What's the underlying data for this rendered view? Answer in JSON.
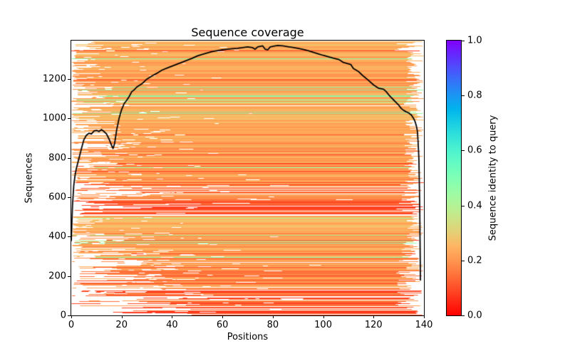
{
  "title": "Sequence coverage",
  "xlabel": "Positions",
  "ylabel": "Sequences",
  "colorbar": {
    "label": "Sequence identity to query",
    "tick_labels": [
      "0.0",
      "0.2",
      "0.4",
      "0.6",
      "0.8",
      "1.0"
    ],
    "tick_values": [
      0.0,
      0.2,
      0.4,
      0.6,
      0.8,
      1.0
    ],
    "min": 0.0,
    "max": 1.0,
    "colormap": "rainbow_r",
    "color_stops": {
      "0.0": "#ff0000",
      "0.2": "#ff964f",
      "0.4": "#b2f396",
      "0.6": "#4df3ce",
      "0.8": "#0096f3",
      "1.0": "#8000ff"
    }
  },
  "axes": {
    "x_tick_labels": [
      "0",
      "20",
      "40",
      "60",
      "80",
      "100",
      "120",
      "140"
    ],
    "x_tick_values": [
      0,
      20,
      40,
      60,
      80,
      100,
      120,
      140
    ],
    "y_tick_labels": [
      "0",
      "200",
      "400",
      "600",
      "800",
      "1000",
      "1200"
    ],
    "y_tick_values": [
      0,
      200,
      400,
      600,
      800,
      1000,
      1200
    ],
    "x_range": [
      0,
      140
    ],
    "y_range": [
      0,
      1396
    ]
  },
  "chart_data": {
    "type": "heatmap",
    "title": "Sequence coverage",
    "xlabel": "Positions",
    "ylabel": "Sequences",
    "n_positions": 140,
    "n_sequences": 1396,
    "description": "Multiple sequence alignment coverage plot: each of ~1396 horizontal rows is one aligned sequence spanning its covered positions, colored by sequence identity to the query via the rainbow_r colormap (0=red, 0.2=orange, 0.45=light green, 1=violet). Most sequences have identity 0.1-0.3 (red/orange); scattered light-green rows near identity 0.4-0.5. White = no coverage. Black overlaid line = number of sequences covering each position.",
    "legend_position": "colorbar right",
    "grid": false,
    "coverage_line": [
      [
        0,
        380
      ],
      [
        0.5,
        560
      ],
      [
        1,
        660
      ],
      [
        1.5,
        710
      ],
      [
        2,
        745
      ],
      [
        3,
        795
      ],
      [
        4,
        845
      ],
      [
        5,
        892
      ],
      [
        6,
        915
      ],
      [
        7,
        925
      ],
      [
        8,
        922
      ],
      [
        9,
        936
      ],
      [
        10,
        940
      ],
      [
        11,
        934
      ],
      [
        12,
        944
      ],
      [
        13,
        934
      ],
      [
        14,
        922
      ],
      [
        15,
        896
      ],
      [
        16,
        864
      ],
      [
        16.6,
        848
      ],
      [
        17.2,
        872
      ],
      [
        18,
        940
      ],
      [
        19,
        1002
      ],
      [
        20,
        1046
      ],
      [
        21,
        1076
      ],
      [
        22,
        1092
      ],
      [
        23,
        1112
      ],
      [
        24,
        1136
      ],
      [
        25,
        1146
      ],
      [
        26,
        1160
      ],
      [
        28,
        1176
      ],
      [
        30,
        1200
      ],
      [
        32,
        1216
      ],
      [
        34,
        1230
      ],
      [
        36,
        1246
      ],
      [
        38,
        1256
      ],
      [
        40,
        1266
      ],
      [
        42,
        1276
      ],
      [
        44,
        1286
      ],
      [
        46,
        1296
      ],
      [
        48,
        1306
      ],
      [
        50,
        1318
      ],
      [
        52,
        1326
      ],
      [
        54,
        1333
      ],
      [
        56,
        1340
      ],
      [
        58,
        1345
      ],
      [
        60,
        1349
      ],
      [
        62,
        1352
      ],
      [
        64,
        1355
      ],
      [
        66,
        1357
      ],
      [
        68,
        1360
      ],
      [
        70,
        1364
      ],
      [
        72,
        1360
      ],
      [
        73,
        1352
      ],
      [
        74,
        1364
      ],
      [
        75,
        1367
      ],
      [
        76,
        1369
      ],
      [
        77,
        1352
      ],
      [
        78,
        1349
      ],
      [
        79,
        1364
      ],
      [
        80,
        1367
      ],
      [
        81,
        1369
      ],
      [
        82,
        1371
      ],
      [
        84,
        1369
      ],
      [
        86,
        1365
      ],
      [
        88,
        1361
      ],
      [
        90,
        1357
      ],
      [
        92,
        1351
      ],
      [
        94,
        1345
      ],
      [
        96,
        1337
      ],
      [
        98,
        1329
      ],
      [
        100,
        1321
      ],
      [
        102,
        1314
      ],
      [
        104,
        1307
      ],
      [
        106,
        1301
      ],
      [
        107,
        1294
      ],
      [
        108,
        1285
      ],
      [
        110,
        1278
      ],
      [
        111,
        1274
      ],
      [
        112,
        1254
      ],
      [
        113,
        1247
      ],
      [
        114,
        1239
      ],
      [
        115,
        1227
      ],
      [
        116,
        1215
      ],
      [
        118,
        1194
      ],
      [
        120,
        1171
      ],
      [
        122,
        1154
      ],
      [
        124,
        1149
      ],
      [
        125,
        1137
      ],
      [
        126,
        1121
      ],
      [
        127,
        1107
      ],
      [
        128,
        1094
      ],
      [
        129,
        1081
      ],
      [
        130,
        1068
      ],
      [
        131,
        1051
      ],
      [
        132,
        1041
      ],
      [
        133,
        1034
      ],
      [
        134,
        1028
      ],
      [
        135,
        1018
      ],
      [
        136,
        998
      ],
      [
        136.5,
        984
      ],
      [
        137,
        962
      ],
      [
        137.4,
        936
      ],
      [
        137.7,
        876
      ],
      [
        138,
        796
      ],
      [
        138.2,
        648
      ],
      [
        138.35,
        520
      ],
      [
        138.45,
        380
      ],
      [
        138.55,
        260
      ],
      [
        138.6,
        180
      ]
    ],
    "msa_render": {
      "seed": 1234567,
      "bands": [
        {
          "i0": 0,
          "i1": 40,
          "whiteP": 0.45,
          "id0": 0.05,
          "idSpan": 0.1,
          "redP": 0.0,
          "greenP": 0.0,
          "s0P": 0.0,
          "sNear": 1,
          "sFar0": 14,
          "sFarSpan": 38,
          "e0": 133,
          "eSpan": 7,
          "gapN": 1,
          "gapW": 6
        },
        {
          "i0": 40,
          "i1": 150,
          "whiteP": 0.18,
          "id0": 0.08,
          "idSpan": 0.14,
          "redP": 0.2,
          "greenP": 0.0,
          "s0P": 0.25,
          "sNear": 6,
          "sFar0": 6,
          "sFarSpan": 40,
          "e0": 128,
          "eSpan": 12,
          "gapN": 3,
          "gapW": 9
        },
        {
          "i0": 150,
          "i1": 280,
          "whiteP": 0.08,
          "id0": 0.12,
          "idSpan": 0.14,
          "redP": 0.15,
          "greenP": 0.0,
          "s0P": 0.45,
          "sNear": 5,
          "sFar0": 5,
          "sFarSpan": 30,
          "e0": 129,
          "eSpan": 11,
          "gapN": 3,
          "gapW": 8
        },
        {
          "i0": 280,
          "i1": 420,
          "whiteP": 0.03,
          "id0": 0.16,
          "idSpan": 0.12,
          "redP": 0.12,
          "greenP": 0.05,
          "s0P": 0.55,
          "sNear": 4,
          "sFar0": 4,
          "sFarSpan": 25,
          "e0": 131,
          "eSpan": 9,
          "gapN": 2,
          "gapW": 6
        },
        {
          "i0": 420,
          "i1": 508,
          "whiteP": 0.0,
          "id0": 0.21,
          "idSpan": 0.07,
          "redP": 0.03,
          "greenP": 0.01,
          "s0P": 0.8,
          "sNear": 3,
          "sFar0": 3,
          "sFarSpan": 10,
          "e0": 133,
          "eSpan": 7,
          "gapN": 1,
          "gapW": 3
        },
        {
          "i0": 508,
          "i1": 585,
          "whiteP": 0.14,
          "id0": 0.06,
          "idSpan": 0.12,
          "redP": 0.5,
          "greenP": 0.0,
          "s0P": 0.5,
          "sNear": 6,
          "sFar0": 6,
          "sFarSpan": 28,
          "e0": 129,
          "eSpan": 11,
          "gapN": 2,
          "gapW": 14
        },
        {
          "i0": 585,
          "i1": 665,
          "whiteP": 0.1,
          "id0": 0.12,
          "idSpan": 0.13,
          "redP": 0.2,
          "greenP": 0.0,
          "s0P": 0.4,
          "sNear": 6,
          "sFar0": 6,
          "sFarSpan": 32,
          "e0": 129,
          "eSpan": 11,
          "gapN": 3,
          "gapW": 8
        },
        {
          "i0": 665,
          "i1": 950,
          "whiteP": 0.02,
          "id0": 0.16,
          "idSpan": 0.11,
          "redP": 0.1,
          "greenP": 0.01,
          "s0P": 0.55,
          "sNear": 3,
          "sFar0": 3,
          "sFarSpan": 18,
          "e0": 132,
          "eSpan": 8,
          "gapN": 2,
          "gapW": 5
        },
        {
          "i0": 950,
          "i1": 1160,
          "whiteP": 0.01,
          "id0": 0.18,
          "idSpan": 0.1,
          "redP": 0.03,
          "greenP": 0.15,
          "s0P": 0.6,
          "sNear": 3,
          "sFar0": 3,
          "sFarSpan": 15,
          "e0": 132,
          "eSpan": 8,
          "gapN": 1,
          "gapW": 4
        },
        {
          "i0": 1160,
          "i1": 1340,
          "whiteP": 0.0,
          "id0": 0.18,
          "idSpan": 0.09,
          "redP": 0.02,
          "greenP": 0.02,
          "s0P": 0.7,
          "sNear": 2,
          "sFar0": 2,
          "sFarSpan": 10,
          "e0": 133,
          "eSpan": 7,
          "gapN": 1,
          "gapW": 3
        },
        {
          "i0": 1340,
          "i1": 1392,
          "whiteP": 0.05,
          "id0": 0.19,
          "idSpan": 0.09,
          "redP": 0.03,
          "greenP": 0.01,
          "s0P": 0.5,
          "sNear": 3,
          "sFar0": 3,
          "sFarSpan": 12,
          "e0": 128,
          "eSpan": 12,
          "gapN": 2,
          "gapW": 4
        },
        {
          "i0": 1392,
          "i1": 1397,
          "whiteP": 1.0,
          "id0": 0.2,
          "idSpan": 0.0,
          "redP": 0.0,
          "greenP": 0.0,
          "s0P": 0.0,
          "sNear": 0,
          "sFar0": 0,
          "sFarSpan": 0,
          "e0": 0,
          "eSpan": 0,
          "gapN": 0,
          "gapW": 0
        }
      ]
    }
  }
}
